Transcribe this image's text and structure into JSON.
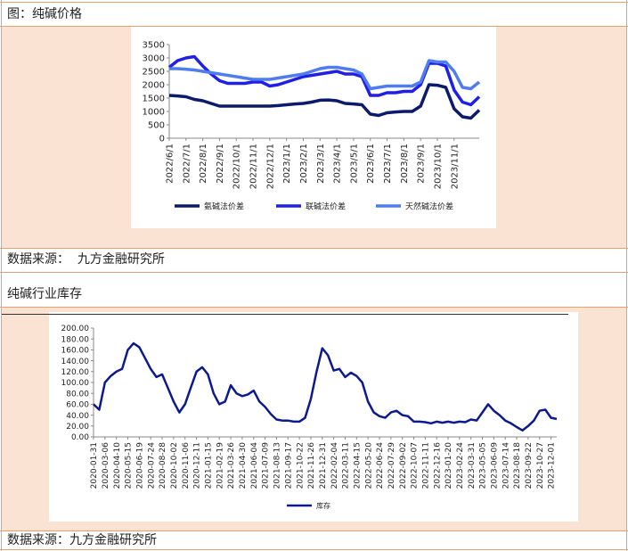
{
  "header": {
    "figure_title": "图：纯碱价格",
    "source_1": "数据来源：  九方金融研究所",
    "section_title": "纯碱行业库存",
    "source_2": "数据来源：九方金融研究所"
  },
  "chart_data": [
    {
      "type": "line",
      "categories": [
        "2022/6/1",
        null,
        "2022/7/1",
        null,
        "2022/8/1",
        null,
        "2022/9/1",
        null,
        "2022/10/1",
        null,
        "2022/11/1",
        null,
        "2022/12/1",
        null,
        "2023/1/1",
        null,
        "2023/2/1",
        null,
        "2023/3/1",
        null,
        "2023/4/1",
        null,
        "2023/5/1",
        null,
        "2023/6/1",
        null,
        "2023/7/1",
        null,
        "2023/8/1",
        null,
        "2023/9/1",
        null,
        "2023/10/1",
        null,
        "2023/11/1",
        null,
        null,
        null
      ],
      "series": [
        {
          "name": "氨碱法价差",
          "color": "#0c1a6d",
          "values": [
            1600,
            1580,
            1550,
            1450,
            1400,
            1300,
            1200,
            1200,
            1200,
            1200,
            1200,
            1200,
            1200,
            1220,
            1250,
            1280,
            1300,
            1350,
            1420,
            1430,
            1400,
            1300,
            1280,
            1250,
            900,
            850,
            950,
            980,
            1000,
            1000,
            1200,
            2000,
            1980,
            1900,
            1100,
            800,
            750,
            1050
          ]
        },
        {
          "name": "联碱法价差",
          "color": "#1f1fe6",
          "values": [
            2650,
            2900,
            3000,
            3050,
            2700,
            2400,
            2150,
            2050,
            2050,
            2050,
            2100,
            2100,
            1950,
            2000,
            2100,
            2200,
            2300,
            2350,
            2400,
            2450,
            2500,
            2400,
            2400,
            2300,
            1600,
            1600,
            1700,
            1700,
            1750,
            1750,
            2000,
            2800,
            2800,
            2700,
            1800,
            1350,
            1250,
            1550
          ]
        },
        {
          "name": "天然碱法价差",
          "color": "#4f7df0",
          "values": [
            2600,
            2600,
            2580,
            2550,
            2500,
            2450,
            2400,
            2350,
            2300,
            2250,
            2200,
            2200,
            2200,
            2250,
            2300,
            2350,
            2400,
            2500,
            2600,
            2650,
            2650,
            2600,
            2550,
            2400,
            1850,
            1900,
            1950,
            1950,
            1950,
            1950,
            2100,
            2900,
            2850,
            2850,
            2500,
            1900,
            1850,
            2100
          ]
        }
      ],
      "ylim": [
        0,
        3500
      ],
      "yticks": [
        0,
        500,
        1000,
        1500,
        2000,
        2500,
        3000,
        3500
      ],
      "grid": false,
      "legend": "bottom"
    },
    {
      "type": "line",
      "categories": [
        "2020-01-31",
        null,
        "2020-03-06",
        null,
        "2020-04-10",
        null,
        "2020-05-15",
        null,
        "2020-06-19",
        null,
        "2020-07-24",
        null,
        "2020-08-28",
        null,
        "2020-10-02",
        null,
        "2020-11-06",
        null,
        "2020-12-11",
        null,
        "2021-01-15",
        null,
        "2021-02-19",
        null,
        "2021-03-26",
        null,
        "2021-04-30",
        null,
        "2021-06-04",
        null,
        "2021-07-09",
        null,
        "2021-08-13",
        null,
        "2021-09-17",
        null,
        "2021-10-22",
        null,
        "2021-11-26",
        null,
        "2021-12-31",
        null,
        "2022-02-04",
        null,
        "2022-03-11",
        null,
        "2022-04-15",
        null,
        "2022-05-20",
        null,
        "2022-06-24",
        null,
        "2022-07-29",
        null,
        "2022-09-02",
        null,
        "2022-10-07",
        null,
        "2022-11-11",
        null,
        "2022-12-16",
        null,
        "2023-01-20",
        null,
        "2023-02-24",
        null,
        "2023-03-31",
        null,
        "2023-05-05",
        null,
        "2023-06-09",
        null,
        "2023-07-14",
        null,
        "2023-08-18",
        null,
        "2023-09-22",
        null,
        "2023-10-27",
        null,
        "2023-12-01",
        null
      ],
      "series": [
        {
          "name": "库存",
          "color": "#0c1a8d",
          "values": [
            60,
            50,
            100,
            112,
            120,
            125,
            160,
            172,
            165,
            145,
            125,
            110,
            115,
            90,
            65,
            45,
            60,
            90,
            120,
            128,
            115,
            80,
            60,
            65,
            95,
            80,
            75,
            78,
            85,
            65,
            55,
            42,
            32,
            30,
            30,
            28,
            28,
            35,
            70,
            120,
            163,
            150,
            122,
            125,
            110,
            118,
            112,
            100,
            65,
            45,
            38,
            35,
            45,
            48,
            40,
            38,
            28,
            28,
            27,
            25,
            28,
            26,
            28,
            26,
            28,
            27,
            32,
            30,
            45,
            60,
            48,
            40,
            30,
            25,
            18,
            12,
            20,
            30,
            48,
            50,
            35,
            33
          ]
        }
      ],
      "ylim": [
        0,
        200
      ],
      "yticks": [
        {
          "value": 0,
          "label": "0.00"
        },
        {
          "value": 20,
          "label": "20.00"
        },
        {
          "value": 40,
          "label": "40.00"
        },
        {
          "value": 60,
          "label": "60.00"
        },
        {
          "value": 80,
          "label": "80.00"
        },
        {
          "value": 100,
          "label": "100.00"
        },
        {
          "value": 120,
          "label": "120.00"
        },
        {
          "value": 140,
          "label": "140.00"
        },
        {
          "value": 160,
          "label": "160.00"
        },
        {
          "value": 180,
          "label": "180.00"
        },
        {
          "value": 200,
          "label": "200.00"
        }
      ],
      "grid": false,
      "legend": "bottom"
    }
  ]
}
